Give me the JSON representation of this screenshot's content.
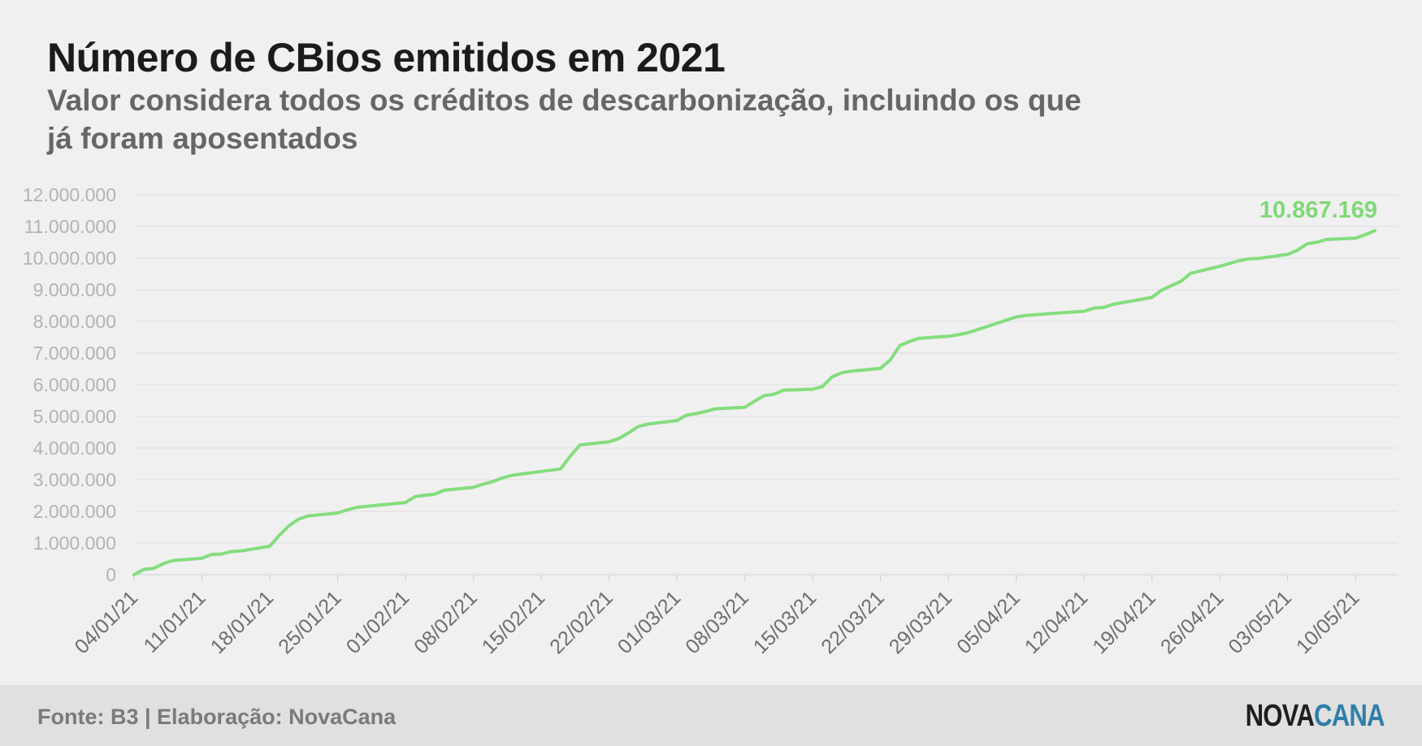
{
  "title": "Número de CBios emitidos em 2021",
  "subtitle": "Valor considera todos os créditos de descarbonização, incluindo os que já foram aposentados",
  "footer": {
    "source": "Fonte: B3 | Elaboração: NovaCana",
    "logo_part1": "NOVA",
    "logo_part2": "CANA"
  },
  "colors": {
    "line": "#84dd7e",
    "annotation": "#7fd877",
    "tick_text": "#b3b3b3",
    "grid": "#dedede",
    "logo_accent": "#2e7fa8"
  },
  "chart_data": {
    "type": "line",
    "title": "Número de CBios emitidos em 2021",
    "xlabel": "",
    "ylabel": "",
    "ylim": [
      0,
      12000000
    ],
    "grid": true,
    "yticks": [
      {
        "value": 0,
        "label": "0"
      },
      {
        "value": 1000000,
        "label": "1.000.000"
      },
      {
        "value": 2000000,
        "label": "2.000.000"
      },
      {
        "value": 3000000,
        "label": "3.000.000"
      },
      {
        "value": 4000000,
        "label": "4.000.000"
      },
      {
        "value": 5000000,
        "label": "5.000.000"
      },
      {
        "value": 6000000,
        "label": "6.000.000"
      },
      {
        "value": 7000000,
        "label": "7.000.000"
      },
      {
        "value": 8000000,
        "label": "8.000.000"
      },
      {
        "value": 9000000,
        "label": "9.000.000"
      },
      {
        "value": 10000000,
        "label": "10.000.000"
      },
      {
        "value": 11000000,
        "label": "11.000.000"
      },
      {
        "value": 12000000,
        "label": "12.000.000"
      }
    ],
    "xticks": [
      "04/01/21",
      "11/01/21",
      "18/01/21",
      "25/01/21",
      "01/02/21",
      "08/02/21",
      "15/02/21",
      "22/02/21",
      "01/03/21",
      "08/03/21",
      "15/03/21",
      "22/03/21",
      "29/03/21",
      "05/04/21",
      "12/04/21",
      "19/04/21",
      "26/04/21",
      "03/05/21",
      "10/05/21"
    ],
    "annotation": {
      "date": "12/05/21",
      "label": "10.867.169"
    },
    "series": [
      {
        "values": [
          [
            "04/01/21",
            0
          ],
          [
            "05/01/21",
            170000
          ],
          [
            "06/01/21",
            200000
          ],
          [
            "07/01/21",
            350000
          ],
          [
            "08/01/21",
            450000
          ],
          [
            "11/01/21",
            520000
          ],
          [
            "12/01/21",
            640000
          ],
          [
            "13/01/21",
            650000
          ],
          [
            "14/01/21",
            730000
          ],
          [
            "15/01/21",
            750000
          ],
          [
            "18/01/21",
            900000
          ],
          [
            "19/01/21",
            1250000
          ],
          [
            "20/01/21",
            1550000
          ],
          [
            "21/01/21",
            1760000
          ],
          [
            "22/01/21",
            1860000
          ],
          [
            "25/01/21",
            1950000
          ],
          [
            "26/01/21",
            2050000
          ],
          [
            "27/01/21",
            2130000
          ],
          [
            "28/01/21",
            2160000
          ],
          [
            "01/02/21",
            2280000
          ],
          [
            "02/02/21",
            2470000
          ],
          [
            "03/02/21",
            2510000
          ],
          [
            "04/02/21",
            2540000
          ],
          [
            "05/02/21",
            2670000
          ],
          [
            "08/02/21",
            2760000
          ],
          [
            "09/02/21",
            2860000
          ],
          [
            "10/02/21",
            2940000
          ],
          [
            "11/02/21",
            3060000
          ],
          [
            "12/02/21",
            3140000
          ],
          [
            "17/02/21",
            3340000
          ],
          [
            "18/02/21",
            3750000
          ],
          [
            "19/02/21",
            4100000
          ],
          [
            "22/02/21",
            4200000
          ],
          [
            "23/02/21",
            4300000
          ],
          [
            "24/02/21",
            4480000
          ],
          [
            "25/02/21",
            4680000
          ],
          [
            "26/02/21",
            4760000
          ],
          [
            "01/03/21",
            4870000
          ],
          [
            "02/03/21",
            5040000
          ],
          [
            "03/03/21",
            5090000
          ],
          [
            "04/03/21",
            5160000
          ],
          [
            "05/03/21",
            5240000
          ],
          [
            "08/03/21",
            5290000
          ],
          [
            "09/03/21",
            5480000
          ],
          [
            "10/03/21",
            5660000
          ],
          [
            "11/03/21",
            5700000
          ],
          [
            "12/03/21",
            5830000
          ],
          [
            "15/03/21",
            5860000
          ],
          [
            "16/03/21",
            5940000
          ],
          [
            "17/03/21",
            6250000
          ],
          [
            "18/03/21",
            6380000
          ],
          [
            "19/03/21",
            6430000
          ],
          [
            "22/03/21",
            6520000
          ],
          [
            "23/03/21",
            6780000
          ],
          [
            "24/03/21",
            7240000
          ],
          [
            "25/03/21",
            7370000
          ],
          [
            "26/03/21",
            7470000
          ],
          [
            "29/03/21",
            7530000
          ],
          [
            "30/03/21",
            7580000
          ],
          [
            "31/03/21",
            7640000
          ],
          [
            "05/04/21",
            8140000
          ],
          [
            "06/04/21",
            8190000
          ],
          [
            "09/04/21",
            8260000
          ],
          [
            "12/04/21",
            8320000
          ],
          [
            "13/04/21",
            8420000
          ],
          [
            "14/04/21",
            8440000
          ],
          [
            "15/04/21",
            8540000
          ],
          [
            "19/04/21",
            8760000
          ],
          [
            "20/04/21",
            8990000
          ],
          [
            "21/04/21",
            9130000
          ],
          [
            "22/04/21",
            9270000
          ],
          [
            "23/04/21",
            9520000
          ],
          [
            "26/04/21",
            9740000
          ],
          [
            "27/04/21",
            9830000
          ],
          [
            "28/04/21",
            9920000
          ],
          [
            "29/04/21",
            9980000
          ],
          [
            "30/04/21",
            9990000
          ],
          [
            "03/05/21",
            10120000
          ],
          [
            "04/05/21",
            10250000
          ],
          [
            "05/05/21",
            10450000
          ],
          [
            "06/05/21",
            10500000
          ],
          [
            "07/05/21",
            10590000
          ],
          [
            "10/05/21",
            10630000
          ],
          [
            "11/05/21",
            10740000
          ],
          [
            "12/05/21",
            10867169
          ]
        ]
      }
    ]
  }
}
